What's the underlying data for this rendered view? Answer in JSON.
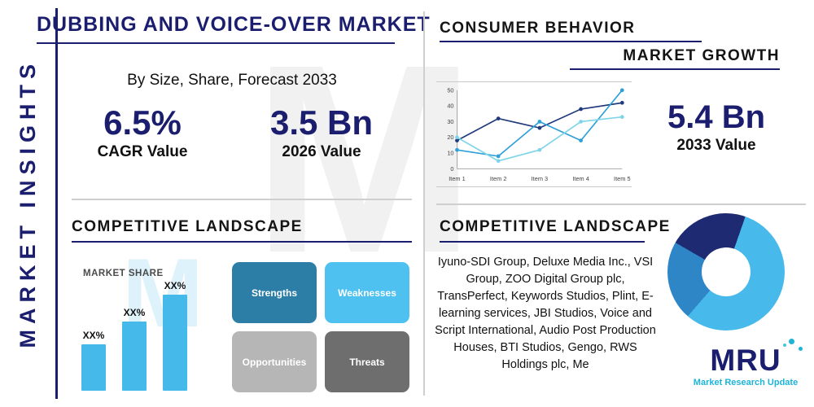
{
  "palette": {
    "navy": "#1b1e6e",
    "sky": "#45b9e9",
    "sky_light": "#7fd4ec",
    "blue_mid": "#2e86c7",
    "divider_gray": "#cfcfcf"
  },
  "sidebar": {
    "label": "MARKET INSIGHTS"
  },
  "header": {
    "title": "DUBBING AND VOICE-OVER MARKET",
    "subtitle": "By Size, Share, Forecast 2033"
  },
  "stats": {
    "cagr_value": "6.5%",
    "cagr_label": "CAGR Value",
    "v2026_value": "3.5 Bn",
    "v2026_label": "2026 Value",
    "v2033_value": "5.4 Bn",
    "v2033_label": "2033 Value"
  },
  "consumer_section": {
    "heading": "CONSUMER BEHAVIOR",
    "subheading": "MARKET GROWTH"
  },
  "competitive_left": {
    "heading": "COMPETITIVE LANDSCAPE",
    "market_share_label": "MARKET SHARE"
  },
  "competitive_right": {
    "heading": "COMPETITIVE LANDSCAPE",
    "companies": "Iyuno-SDI Group, Deluxe Media Inc., VSI Group, ZOO Digital Group plc, TransPerfect, Keywords Studios, Plint, E-learning services, JBI Studios, Voice and Script International, Audio Post Production Houses, BTI Studios, Gengo, RWS Holdings plc, Me"
  },
  "swot": {
    "items": [
      {
        "label": "Strengths",
        "color": "#2d7ea7"
      },
      {
        "label": "Weaknesses",
        "color": "#4ec1f0"
      },
      {
        "label": "Opportunities",
        "color": "#b6b6b6"
      },
      {
        "label": "Threats",
        "color": "#6e6e6e"
      }
    ]
  },
  "chart_data": [
    {
      "type": "line",
      "title": "Market Growth",
      "x": [
        "Item 1",
        "Item 2",
        "Item 3",
        "Item 4",
        "Item 5"
      ],
      "ylim": [
        0,
        50
      ],
      "yticks": [
        0,
        10,
        20,
        30,
        40,
        50
      ],
      "grid": false,
      "legend": false,
      "series": [
        {
          "name": "series-navy",
          "color": "#1f3b7c",
          "values": [
            18,
            32,
            26,
            38,
            42
          ]
        },
        {
          "name": "series-blue",
          "color": "#2f9fd8",
          "values": [
            12,
            8,
            30,
            18,
            50
          ]
        },
        {
          "name": "series-teal",
          "color": "#7fd4e8",
          "values": [
            20,
            5,
            12,
            30,
            33
          ]
        }
      ]
    },
    {
      "type": "bar",
      "title": "MARKET SHARE",
      "categories": [
        "",
        "",
        ""
      ],
      "labels": [
        "XX%",
        "XX%",
        "XX%"
      ],
      "values": [
        30,
        45,
        62
      ],
      "color": "#45b9e9",
      "ylim": [
        0,
        70
      ]
    },
    {
      "type": "pie",
      "decorative": true,
      "rotation_deg": -60,
      "slices": [
        {
          "name": "segment-navy",
          "value": 22,
          "color": "#1e2a72"
        },
        {
          "name": "segment-sky",
          "value": 56,
          "color": "#47b9ea"
        },
        {
          "name": "segment-blue",
          "value": 22,
          "color": "#2e86c7"
        }
      ]
    }
  ],
  "logo": {
    "name": "MRU",
    "tagline": "Market Research Update"
  },
  "watermark": {
    "text": "M",
    "text2": "M"
  }
}
